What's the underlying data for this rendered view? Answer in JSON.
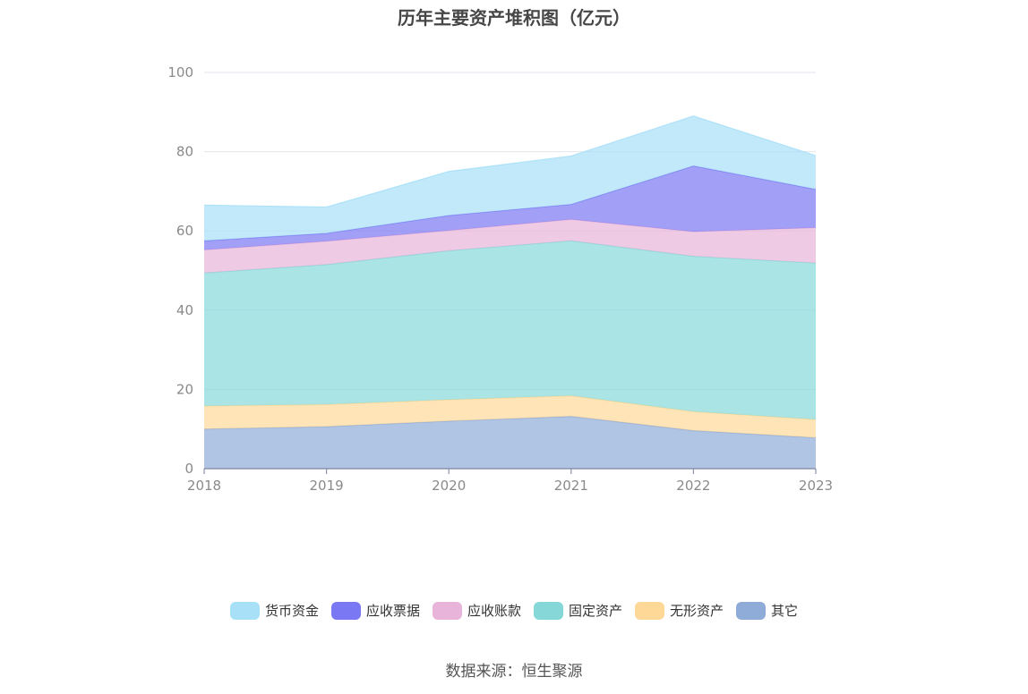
{
  "chart_data": {
    "type": "area",
    "title": "历年主要资产堆积图（亿元）",
    "stacked": true,
    "x": [
      "2018",
      "2019",
      "2020",
      "2021",
      "2022",
      "2023"
    ],
    "ylim": [
      0,
      100
    ],
    "yticks": [
      0,
      20,
      40,
      60,
      80,
      100
    ],
    "grid": true,
    "legend_position": "bottom",
    "series": [
      {
        "name": "其它",
        "color": "#8fabd8",
        "values": [
          10.0,
          10.6,
          12.0,
          13.2,
          9.6,
          7.8
        ]
      },
      {
        "name": "无形资产",
        "color": "#fdd897",
        "values": [
          5.8,
          5.6,
          5.4,
          5.2,
          4.8,
          4.6
        ]
      },
      {
        "name": "固定资产",
        "color": "#86d8d8",
        "values": [
          33.6,
          35.3,
          37.6,
          39.1,
          39.2,
          39.5
        ]
      },
      {
        "name": "应收账款",
        "color": "#e8b4da",
        "values": [
          5.8,
          5.9,
          5.1,
          5.4,
          6.2,
          8.9
        ]
      },
      {
        "name": "应收票据",
        "color": "#7a78f2",
        "values": [
          2.3,
          2.0,
          3.8,
          3.8,
          16.6,
          9.7
        ]
      },
      {
        "name": "货币资金",
        "color": "#a8e0f8",
        "values": [
          9.0,
          6.6,
          11.1,
          12.2,
          12.6,
          8.5
        ]
      }
    ]
  },
  "legend_order": [
    "货币资金",
    "应收票据",
    "应收账款",
    "固定资产",
    "无形资产",
    "其它"
  ],
  "source_text": "数据来源：恒生聚源"
}
